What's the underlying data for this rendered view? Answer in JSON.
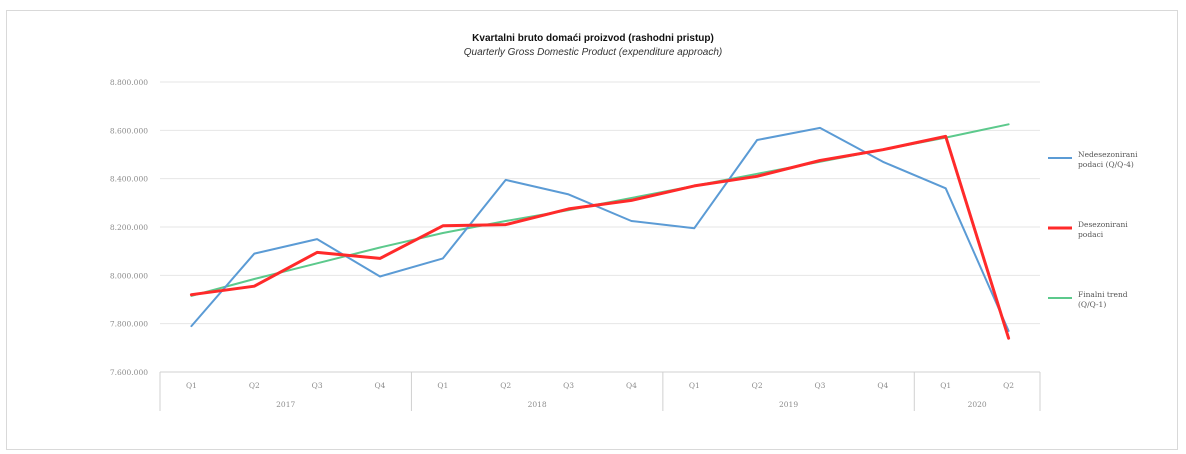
{
  "chart_data": {
    "type": "line",
    "title": "Kvartalni bruto domaći proizvod (rashodni pristup)",
    "subtitle": "Quarterly Gross Domestic Product (expenditure approach)",
    "xlabel": "",
    "ylabel": "",
    "categories": [
      "Q1",
      "Q2",
      "Q3",
      "Q4",
      "Q1",
      "Q2",
      "Q3",
      "Q4",
      "Q1",
      "Q2",
      "Q3",
      "Q4",
      "Q1",
      "Q2"
    ],
    "years": [
      {
        "label": "2017",
        "start": 0,
        "count": 4
      },
      {
        "label": "2018",
        "start": 4,
        "count": 4
      },
      {
        "label": "2019",
        "start": 8,
        "count": 4
      },
      {
        "label": "2020",
        "start": 12,
        "count": 2
      }
    ],
    "ylim": [
      7600000,
      8800000
    ],
    "yticks": [
      7600000,
      7800000,
      8000000,
      8200000,
      8400000,
      8600000,
      8800000
    ],
    "ytick_labels": [
      "7.600.000",
      "7.800.000",
      "8.000.000",
      "8.200.000",
      "8.400.000",
      "8.600.000",
      "8.800.000"
    ],
    "grid": true,
    "legend_position": "right",
    "series": [
      {
        "name": "Nedesezonirani podaci (Q/Q-4)",
        "color": "#5b9bd5",
        "width": 2,
        "values": [
          7790000,
          8090000,
          8150000,
          7995000,
          8070000,
          8395000,
          8335000,
          8225000,
          8195000,
          8560000,
          8610000,
          8470000,
          8360000,
          7770000
        ]
      },
      {
        "name": "Desezonirani podaci",
        "color": "#ff2a2a",
        "width": 3,
        "values": [
          7920000,
          7955000,
          8095000,
          8070000,
          8205000,
          8210000,
          8275000,
          8310000,
          8370000,
          8410000,
          8475000,
          8520000,
          8575000,
          7740000
        ]
      },
      {
        "name": "Finalni trend (Q/Q-1)",
        "color": "#5cc98c",
        "width": 2,
        "values": [
          7915000,
          7985000,
          8050000,
          8115000,
          8175000,
          8225000,
          8270000,
          8320000,
          8370000,
          8420000,
          8470000,
          8520000,
          8570000,
          8625000
        ]
      }
    ]
  }
}
